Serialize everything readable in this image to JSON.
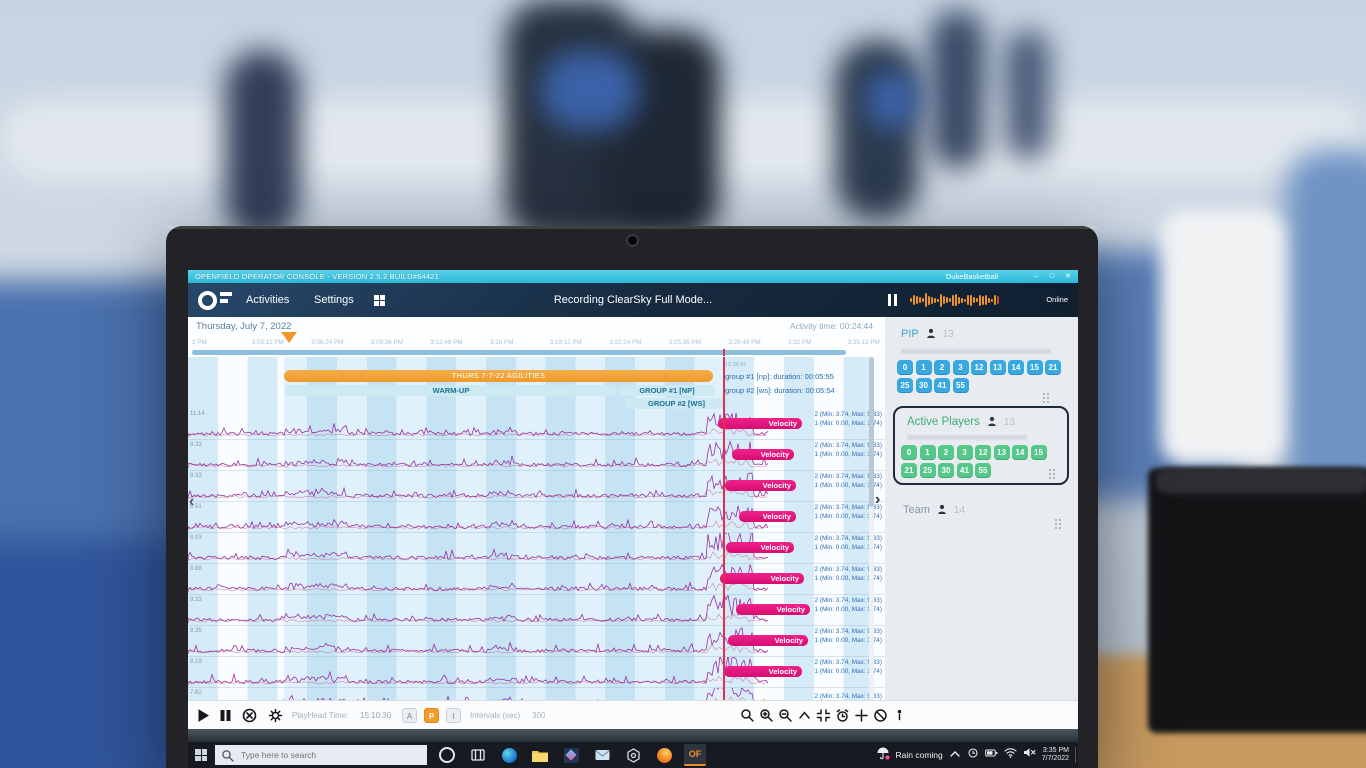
{
  "titlebar": {
    "title": "OPENFIELD OPERATOR CONSOLE - VERSION 2.5.2 BUILD#64421",
    "account": "DukeBasketball"
  },
  "navbar": {
    "menu_activities": "Activities",
    "menu_settings": "Settings",
    "status": "Recording ClearSky Full Mode...",
    "online": "Online"
  },
  "chart": {
    "date": "Thursday, July 7, 2022",
    "activity_time": "Activity time: 00:24:44",
    "ticks": [
      "3 PM",
      "3:03:12 PM",
      "3:06:24 PM",
      "3:09:36 PM",
      "3:12:48 PM",
      "3:16 PM",
      "3:19:12 PM",
      "3:22:24 PM",
      "3:25:36 PM",
      "3:28:48 PM",
      "3:32 PM",
      "3:35:12 PM"
    ],
    "session_bar": "THURS 7-7-22 AGILITIES",
    "warmup_bar": "WARM-UP",
    "group1_bar": "GROUP #1 [NP]",
    "group2_bar": "GROUP #2 [WS]",
    "hover_time": "15:35:41",
    "group1_info": "group #1 [np]:  duration:  00:05:55",
    "group2_info": "group #2 [ws]:  duration:  00:05:54",
    "tracks": [
      {
        "axis": "11.14",
        "label": "Velocity",
        "stat1": "2 (Min: 3.74, Max: 9.33)",
        "stat2": "1 (Min: 0.00, Max: 3.74)"
      },
      {
        "axis": "9.33",
        "label": "Velocity",
        "stat1": "2 (Min: 3.74, Max: 9.33)",
        "stat2": "1 (Min: 0.00, Max: 3.74)"
      },
      {
        "axis": "9.33",
        "label": "Velocity",
        "stat1": "2 (Min: 3.74, Max: 9.33)",
        "stat2": "1 (Min: 0.00, Max: 3.74)"
      },
      {
        "axis": "8.51",
        "label": "Velocity",
        "stat1": "2 (Min: 3.74, Max: 9.33)",
        "stat2": "1 (Min: 0.00, Max: 3.74)"
      },
      {
        "axis": "8.03",
        "label": "Velocity",
        "stat1": "2 (Min: 3.74, Max: 9.33)",
        "stat2": "1 (Min: 0.00, Max: 3.74)"
      },
      {
        "axis": "8.88",
        "label": "Velocity",
        "stat1": "2 (Min: 3.74, Max: 9.33)",
        "stat2": "1 (Min: 0.00, Max: 3.74)"
      },
      {
        "axis": "9.33",
        "label": "Velocity",
        "stat1": "2 (Min: 3.74, Max: 9.33)",
        "stat2": "1 (Min: 0.00, Max: 3.74)"
      },
      {
        "axis": "8.35",
        "label": "Velocity",
        "stat1": "2 (Min: 3.74, Max: 9.33)",
        "stat2": "1 (Min: 0.00, Max: 3.74)"
      },
      {
        "axis": "8.19",
        "label": "Velocity",
        "stat1": "2 (Min: 3.74, Max: 9.33)",
        "stat2": "1 (Min: 0.00, Max: 3.74)"
      }
    ],
    "partial_track": {
      "axis": "7.62",
      "label": "Velocity",
      "stat1": "2 (Min: 3.74, Max: 9.33)"
    }
  },
  "sidebar": {
    "pip": {
      "title": "PIP",
      "count": "13",
      "chips": [
        "0",
        "1",
        "2",
        "3",
        "12",
        "13",
        "14",
        "15",
        "21",
        "25",
        "30",
        "41",
        "55"
      ]
    },
    "active": {
      "title": "Active Players",
      "count": "13",
      "chips": [
        "0",
        "1",
        "2",
        "3",
        "12",
        "13",
        "14",
        "15",
        "21",
        "25",
        "30",
        "41",
        "55"
      ]
    },
    "team": {
      "title": "Team",
      "count": "14"
    }
  },
  "toolbar": {
    "playhead_label": "PlayHead Time:",
    "playhead_value": "15:10:30",
    "btn_a": "A",
    "btn_p": "P",
    "btn_i": "I",
    "intervals_label": "Intervals (sec)",
    "intervals_value": "300"
  },
  "taskbar": {
    "search_placeholder": "Type here to search",
    "weather": "Rain coming",
    "time": "3:35 PM",
    "date": "7/7/2022"
  },
  "colors": {
    "accent_pink": "#e6007e",
    "accent_orange": "#f0a23a",
    "chip_blue": "#38a9e0",
    "chip_green": "#55c789",
    "titlebar_cyan": "#3fc3de"
  }
}
